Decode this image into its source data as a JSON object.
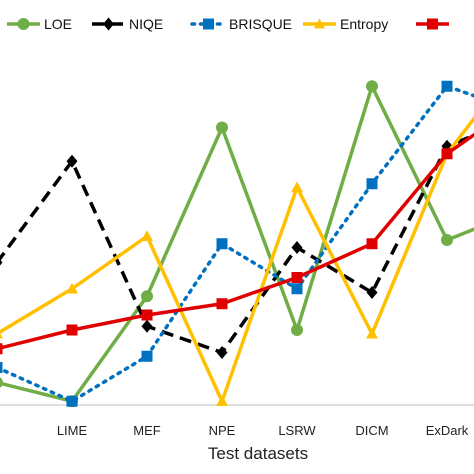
{
  "chart_data": {
    "type": "line",
    "title": "",
    "xlabel": "Test datasets",
    "ylabel": "",
    "categories": [
      "",
      "LIME",
      "MEF",
      "NPE",
      "LSRW",
      "DICM",
      "ExDark",
      ""
    ],
    "ylim": [
      0,
      100
    ],
    "grid": false,
    "legend_position": "top",
    "series": [
      {
        "name": "LOE",
        "color": "#70AD47",
        "marker": "circle",
        "dash": "solid",
        "values": [
          6,
          1,
          29,
          74,
          20,
          85,
          44,
          52
        ]
      },
      {
        "name": "NIQE",
        "color": "#000000",
        "marker": "diamond",
        "dash": "dash",
        "values": [
          38,
          65,
          21,
          14,
          42,
          30,
          69,
          77
        ]
      },
      {
        "name": "BRISQUE",
        "color": "#0070C0",
        "marker": "square",
        "dash": "dot",
        "values": [
          10,
          1,
          13,
          43,
          31,
          59,
          85,
          78
        ]
      },
      {
        "name": "Entropy",
        "color": "#FFC000",
        "marker": "triangle",
        "dash": "solid",
        "values": [
          19,
          31,
          45,
          1,
          58,
          19,
          67,
          93
        ]
      },
      {
        "name": "",
        "color": "#E00000",
        "marker": "square",
        "dash": "solid",
        "values": [
          15,
          20,
          24,
          27,
          34,
          43,
          67,
          81
        ]
      }
    ]
  }
}
